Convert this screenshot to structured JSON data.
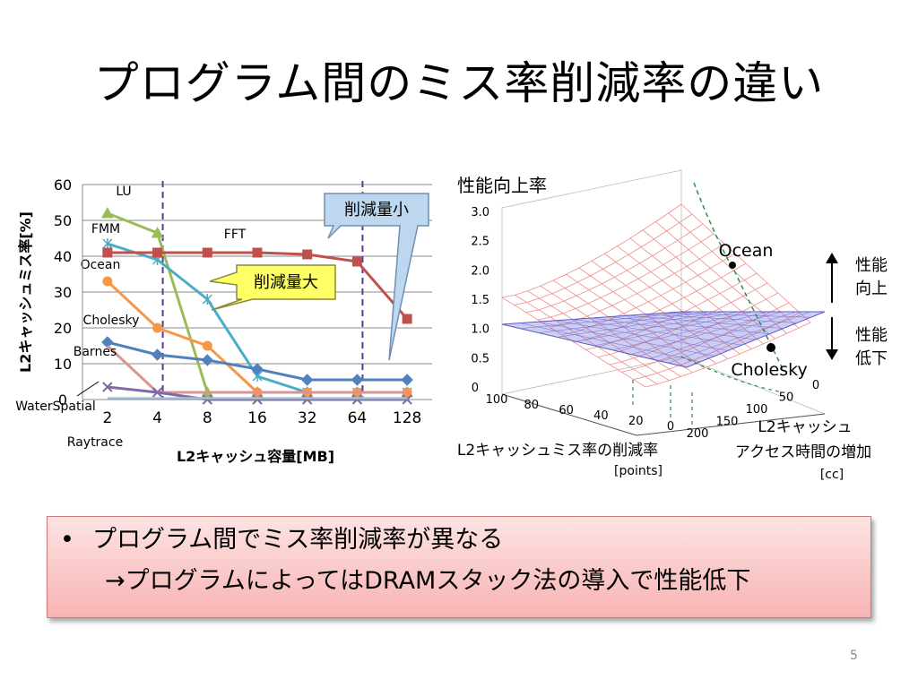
{
  "slide": {
    "title": "プログラム間のミス率削減率の違い",
    "bullet": "プログラム間でミス率削減率が異なる",
    "sub_bullet": "→プログラムによってはDRAMスタック法の導入で性能低下",
    "page_number": "5"
  },
  "chart_data": [
    {
      "type": "line",
      "title": "",
      "xlabel": "L2キャッシュ容量[MB]",
      "ylabel": "L2キャッシュミス率[%]",
      "categories": [
        "2",
        "4",
        "8",
        "16",
        "32",
        "64",
        "128"
      ],
      "ylim": [
        0,
        60
      ],
      "yticks": [
        "0",
        "10",
        "20",
        "30",
        "40",
        "50",
        "60"
      ],
      "grid": true,
      "series": [
        {
          "name": "LU",
          "color": "#9bbb59",
          "marker": "triangle",
          "values": [
            52,
            46.5,
            2,
            2,
            2,
            2,
            2
          ]
        },
        {
          "name": "FMM",
          "color": "#4bacc6",
          "marker": "star",
          "values": [
            43.5,
            39,
            28,
            6.5,
            2,
            2,
            2
          ]
        },
        {
          "name": "FFT",
          "color": "#c0504d",
          "marker": "square",
          "values": [
            41,
            41,
            41,
            41,
            40.5,
            38.5,
            22.5
          ]
        },
        {
          "name": "Ocean",
          "color": "#f79646",
          "marker": "circle",
          "values": [
            33,
            20,
            15,
            2,
            2,
            2,
            2
          ]
        },
        {
          "name": "Cholesky",
          "color": "#4f81bd",
          "marker": "diamond",
          "values": [
            16,
            12.5,
            11,
            8.5,
            5.5,
            5.5,
            5.5
          ]
        },
        {
          "name": "Barnes",
          "color": "#d99594",
          "marker": "none",
          "values": [
            15,
            2,
            2,
            2,
            2,
            2,
            2
          ]
        },
        {
          "name": "WaterSpatial",
          "color": "#7f6aa6",
          "marker": "x",
          "values": [
            3.5,
            2,
            0,
            0,
            0,
            0,
            0
          ]
        },
        {
          "name": "Raytrace",
          "color": "#9dc3e6",
          "marker": "none",
          "values": [
            0.3,
            0.3,
            0.3,
            0.3,
            0.3,
            0.3,
            0.3
          ]
        }
      ],
      "vlines_at": [
        "4",
        "64"
      ],
      "callouts": [
        "削減量小",
        "削減量大"
      ]
    },
    {
      "type": "surface",
      "title": "性能向上率",
      "zticks": [
        "0",
        "0.5",
        "1.0",
        "1.5",
        "2.0",
        "2.5",
        "3.0"
      ],
      "xlabel": "L2キャッシュミス率の削減率",
      "xunit": "[points]",
      "xticks": [
        "100",
        "80",
        "60",
        "40",
        "20",
        "0"
      ],
      "ylabel": "L2キャッシュアクセス時間の増加",
      "yunit": "[cc]",
      "yticks": [
        "200",
        "150",
        "100",
        "50",
        "0"
      ],
      "points": [
        {
          "name": "Ocean"
        },
        {
          "name": "Cholesky"
        }
      ],
      "up_label": [
        "性能",
        "向上"
      ],
      "down_label": [
        "性能",
        "低下"
      ],
      "colors": {
        "surface": "#f08a8a",
        "plane": "#6f6fd8",
        "curve": "#2e8b57"
      }
    }
  ]
}
